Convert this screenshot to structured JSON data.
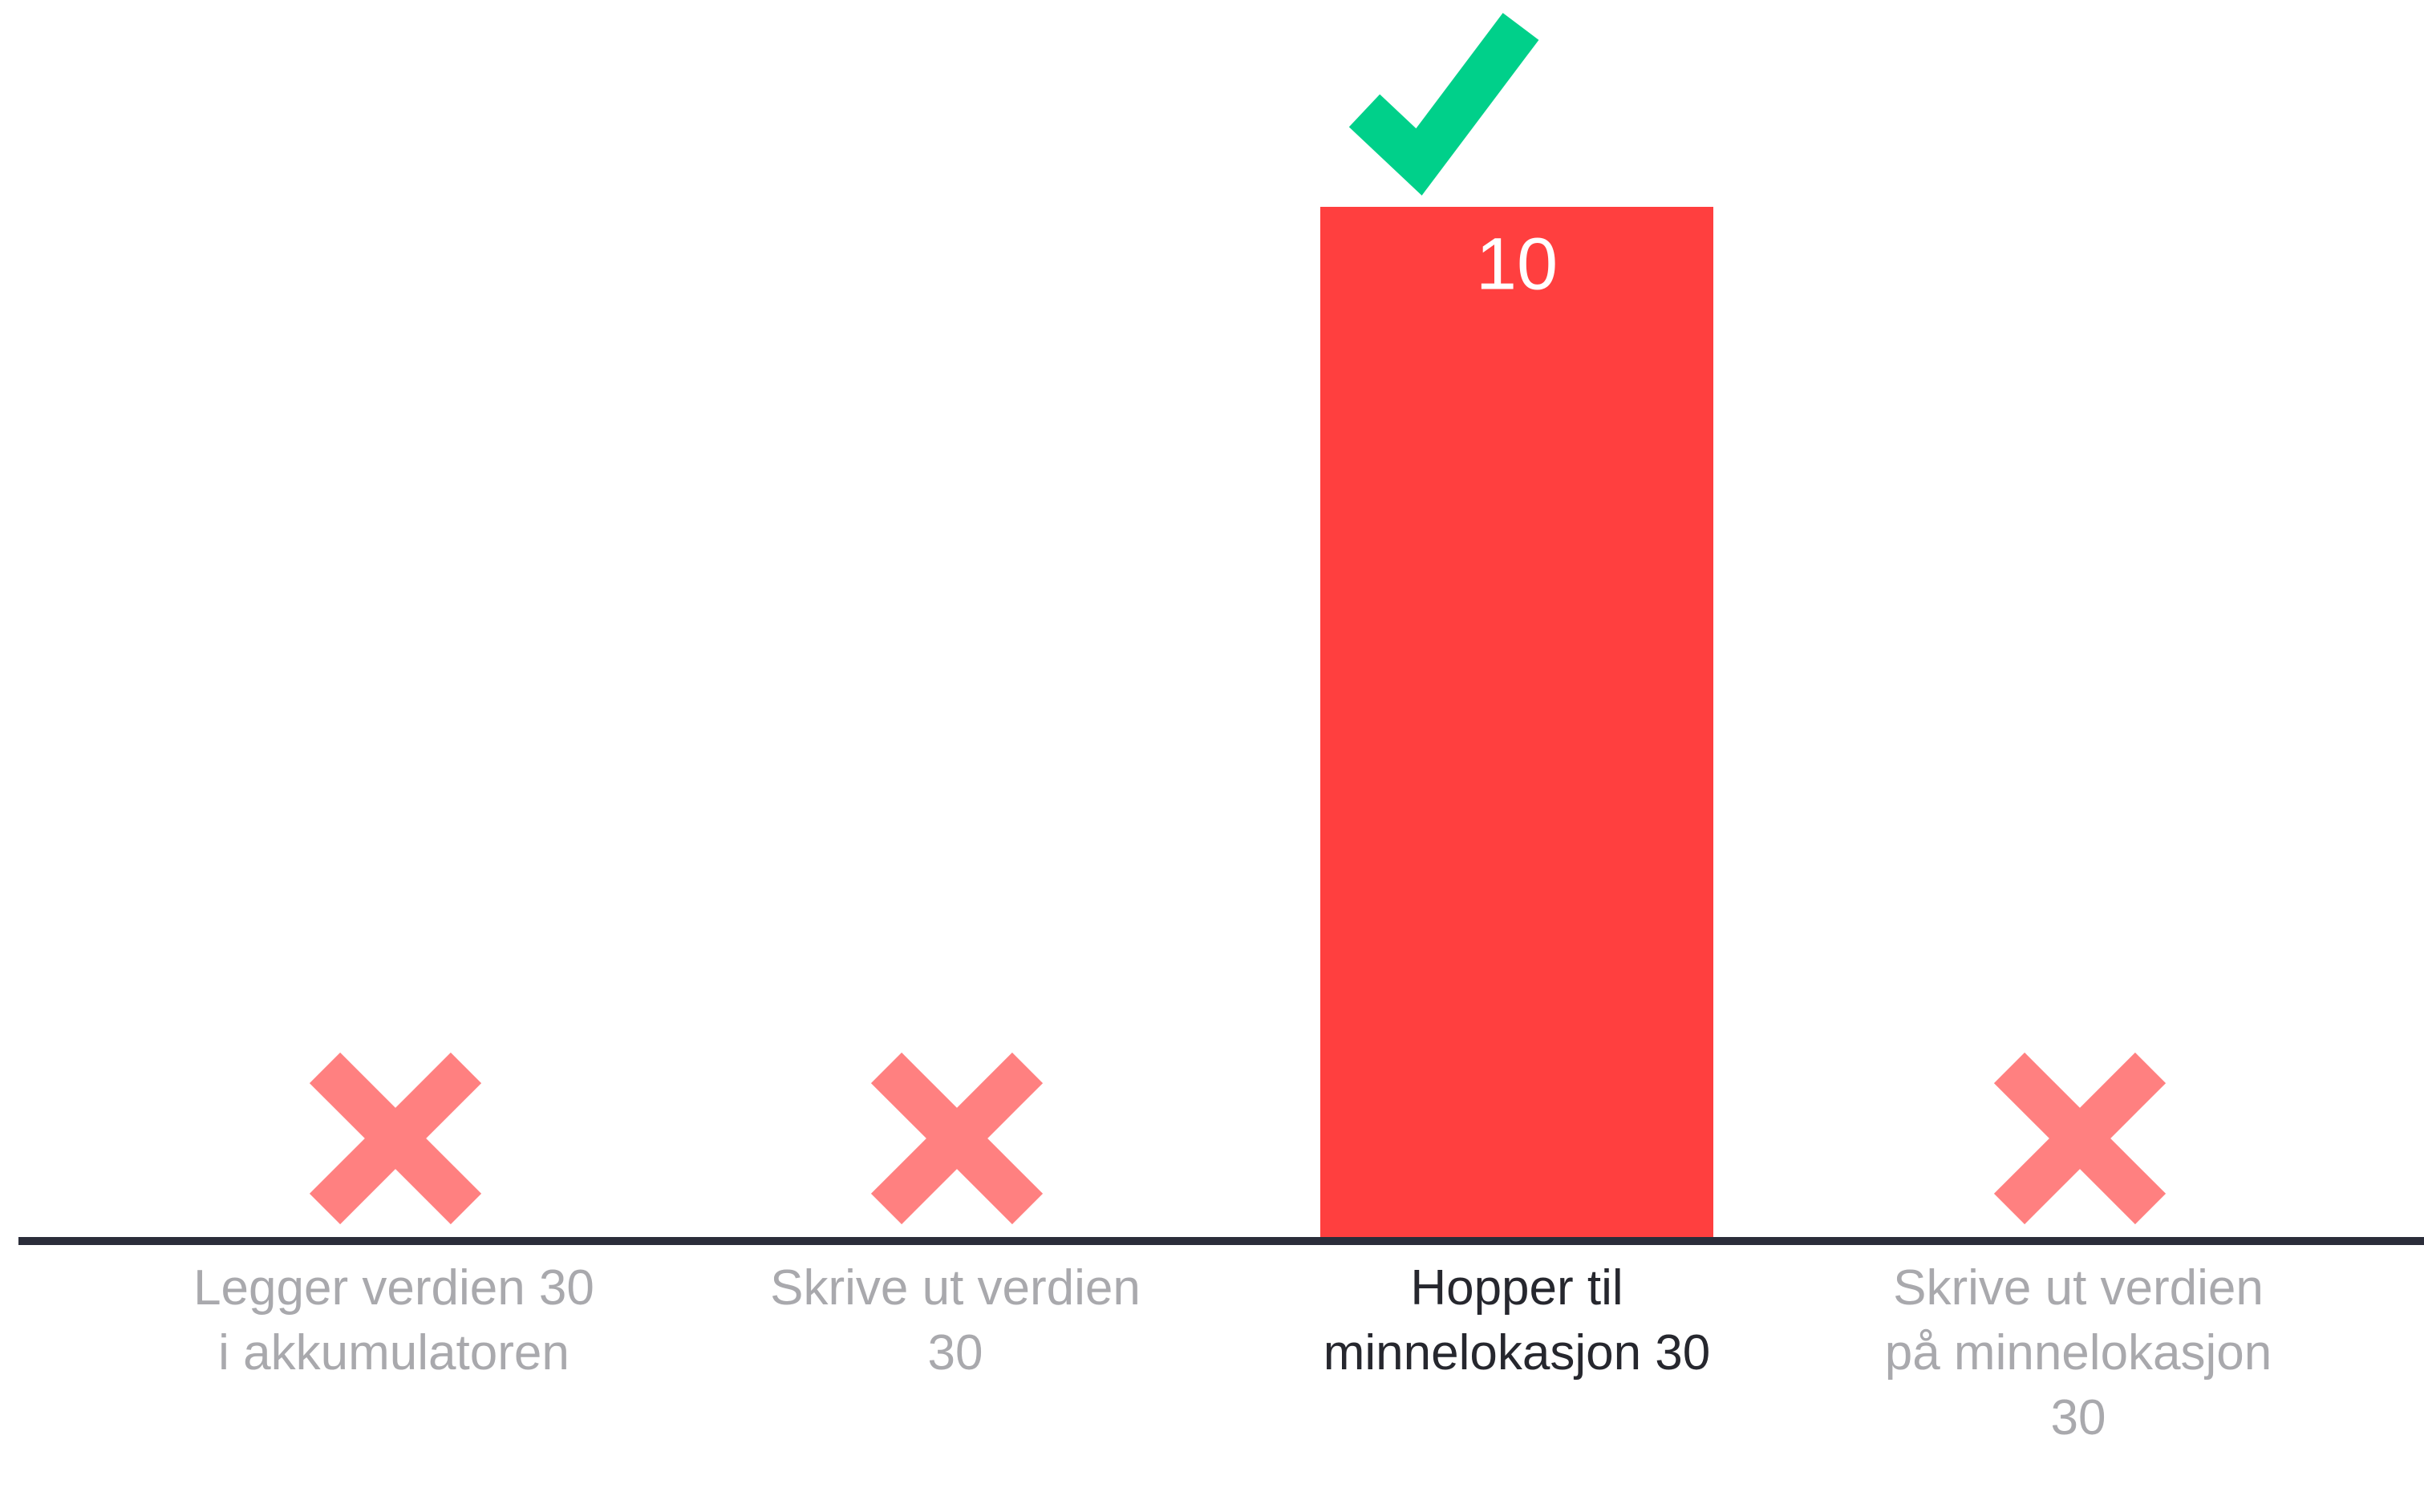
{
  "chart_data": {
    "type": "bar",
    "categories": [
      "Legger verdien 30 i akkumulatoren",
      "Skrive ut verdien 30",
      "Hopper til minnelokasjon 30",
      "Skrive ut verdien på minnelokasjon 30"
    ],
    "values": [
      0,
      0,
      10,
      0
    ],
    "correct": [
      false,
      false,
      true,
      false
    ],
    "color": "#ff3f3f",
    "wrong_color": "#ff8080",
    "correct_color": "#00d08a",
    "ylim": [
      0,
      10
    ]
  }
}
